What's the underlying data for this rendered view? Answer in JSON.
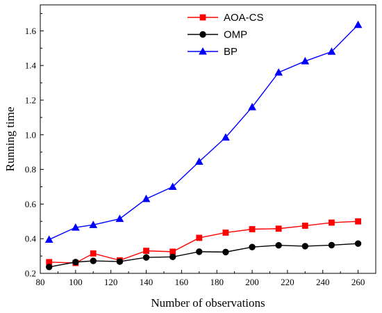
{
  "chart_data": {
    "type": "line",
    "xlabel": "Number of observations",
    "ylabel": "Running time",
    "xlim": [
      80,
      270
    ],
    "ylim": [
      0.2,
      1.75
    ],
    "xticks": [
      80,
      100,
      120,
      140,
      160,
      180,
      200,
      220,
      240,
      260
    ],
    "xtick_labels": [
      "80",
      "100",
      "120",
      "140",
      "160",
      "180",
      "200",
      "220",
      "240",
      "260"
    ],
    "yticks": [
      0.2,
      0.4,
      0.6,
      0.8,
      1.0,
      1.2,
      1.4,
      1.6
    ],
    "ytick_labels": [
      "0.2",
      "0.4",
      "0.6",
      "0.8",
      "1.0",
      "1.2",
      "1.4",
      "1.6"
    ],
    "grid": false,
    "legend_position": "top-center",
    "x": [
      85,
      100,
      110,
      125,
      140,
      155,
      170,
      185,
      200,
      215,
      230,
      245,
      260
    ],
    "series": [
      {
        "name": "AOA-CS",
        "color": "#ff0000",
        "marker": "square",
        "values": [
          0.265,
          0.26,
          0.315,
          0.275,
          0.33,
          0.325,
          0.405,
          0.435,
          0.455,
          0.458,
          0.475,
          0.493,
          0.5
        ]
      },
      {
        "name": "OMP",
        "color": "#000000",
        "marker": "circle",
        "values": [
          0.237,
          0.265,
          0.272,
          0.268,
          0.292,
          0.295,
          0.325,
          0.323,
          0.352,
          0.362,
          0.357,
          0.363,
          0.372
        ]
      },
      {
        "name": "BP",
        "color": "#0000ff",
        "marker": "triangle",
        "values": [
          0.395,
          0.465,
          0.48,
          0.515,
          0.63,
          0.7,
          0.845,
          0.985,
          1.16,
          1.36,
          1.425,
          1.48,
          1.635
        ]
      }
    ]
  }
}
